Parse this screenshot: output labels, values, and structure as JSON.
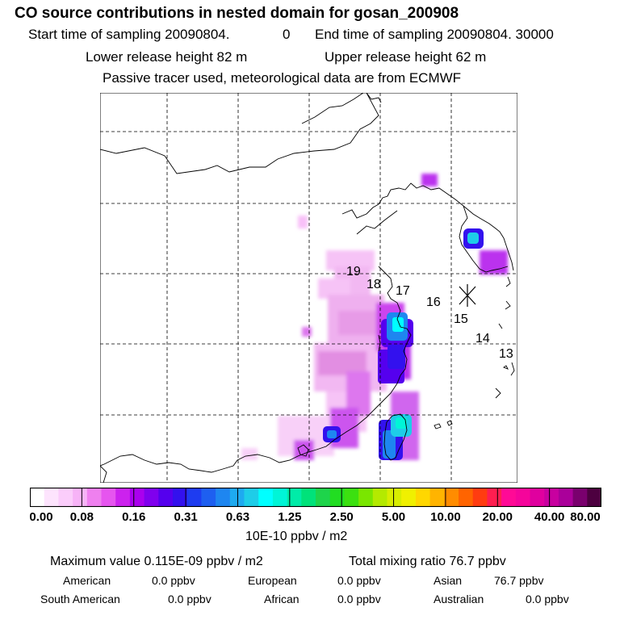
{
  "title": "CO  source contributions in nested domain for gosan_200908",
  "header": {
    "start_label": "Start time of sampling 20090804.",
    "start_value": "0",
    "end_label": "End time of sampling 20090804. 30000",
    "lower_release": "Lower release height   82 m",
    "upper_release": "Upper release height   62 m",
    "tracer_note": "Passive tracer used, meteorological data are from ECMWF"
  },
  "map": {
    "trajectory_labels": [
      "19",
      "18",
      "17",
      "16",
      "15",
      "14",
      "13"
    ],
    "receptor_icon": "asterisk-receptor-icon"
  },
  "colorbar": {
    "ticks": [
      "0.00",
      "0.08",
      "0.16",
      "0.31",
      "0.63",
      "1.25",
      "2.50",
      "5.00",
      "10.00",
      "20.00",
      "40.00",
      "80.00"
    ],
    "units": "10E-10 ppbv / m2",
    "colors": [
      "#ffffff",
      "#fde4fd",
      "#fbcdfb",
      "#f7b3f7",
      "#ef80ef",
      "#e655ef",
      "#cc22ee",
      "#aa00ee",
      "#8000ee",
      "#5500ee",
      "#3311ee",
      "#1e3cf0",
      "#1e5ff0",
      "#1e86f0",
      "#1eaaf0",
      "#1ecde8",
      "#00ffff",
      "#00f5d7",
      "#00eca8",
      "#00e27a",
      "#1ed44b",
      "#22dd22",
      "#3ce010",
      "#7ae600",
      "#b4ea00",
      "#d8ed00",
      "#f0f000",
      "#ffd700",
      "#ffb400",
      "#ff8c00",
      "#ff6400",
      "#ff3c10",
      "#ff1e50",
      "#ff0a96",
      "#f5059b",
      "#e0009f",
      "#c800a0",
      "#aa009a",
      "#7a006e",
      "#4d0040"
    ]
  },
  "footer": {
    "max_label": "Maximum value  0.115E-09 ppbv / m2",
    "total_label": "Total mixing ratio       76.7 ppbv",
    "american_label": "American",
    "american_value": "0.0 ppbv",
    "european_label": "European",
    "european_value": "0.0 ppbv",
    "asian_label": "Asian",
    "asian_value": "76.7 ppbv",
    "south_american_label": "South American",
    "south_american_value": "0.0 ppbv",
    "african_label": "African",
    "african_value": "0.0 ppbv",
    "australian_label": "Australian",
    "australian_value": "0.0 ppbv"
  }
}
